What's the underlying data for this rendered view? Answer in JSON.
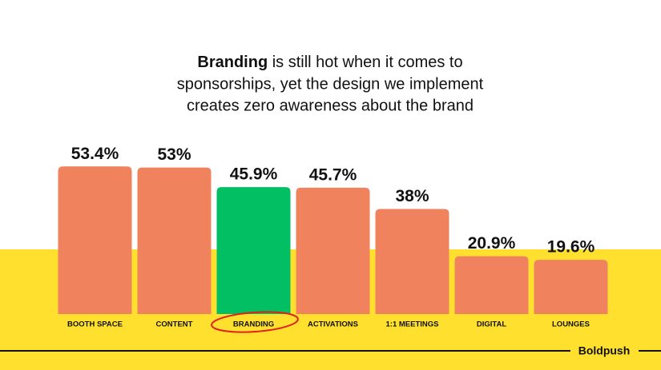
{
  "chart_data": {
    "type": "bar",
    "title": {
      "emphasis": "Branding",
      "lines": [
        "is still hot when it comes to",
        "sponsorships, yet the design we implement",
        "creates zero awareness about the brand"
      ]
    },
    "categories": [
      "BOOTH SPACE",
      "CONTENT",
      "BRANDING",
      "ACTIVATIONS",
      "1:1 MEETINGS",
      "DIGITAL",
      "LOUNGES"
    ],
    "values": [
      53.4,
      53,
      45.9,
      45.7,
      38,
      20.9,
      19.6
    ],
    "value_labels": [
      "53.4%",
      "53%",
      "45.9%",
      "45.7%",
      "38%",
      "20.9%",
      "19.6%"
    ],
    "colors": [
      "#f0825e",
      "#f0825e",
      "#02bf63",
      "#f0825e",
      "#f0825e",
      "#f0825e",
      "#f0825e"
    ],
    "brand": "Boldpush"
  }
}
